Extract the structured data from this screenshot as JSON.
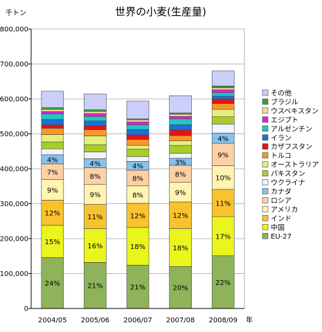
{
  "chart_data": {
    "type": "bar",
    "stacked": true,
    "title": "世界の小麦(生産量)",
    "ylabel": "千トン",
    "xlabel": "年",
    "categories": [
      "2004/05",
      "2005/06",
      "2006/07",
      "2007/08",
      "2008/09"
    ],
    "ylim": [
      0,
      800000
    ],
    "yticks": [
      "0",
      "100,000",
      "200,000",
      "300,000",
      "400,000",
      "500,000",
      "600,000",
      "700,000",
      "800,000"
    ],
    "grid": true,
    "legend_position": "right",
    "series": [
      {
        "name": "EU-27",
        "color": "#8fb35a",
        "values": [
          146000,
          132000,
          124000,
          120000,
          151000
        ],
        "labels": [
          "24%",
          "21%",
          "21%",
          "20%",
          "22%"
        ]
      },
      {
        "name": "中国",
        "color": "#eaf51e",
        "values": [
          92000,
          97000,
          108000,
          109000,
          112000
        ],
        "labels": [
          "15%",
          "16%",
          "18%",
          "18%",
          "17%"
        ]
      },
      {
        "name": "インド",
        "color": "#f8c32e",
        "values": [
          72000,
          69000,
          69000,
          76000,
          78000
        ],
        "labels": [
          "12%",
          "11%",
          "12%",
          "12%",
          "11%"
        ]
      },
      {
        "name": "アメリカ",
        "color": "#fff4b0",
        "values": [
          59000,
          57000,
          50000,
          56000,
          68000
        ],
        "labels": [
          "9%",
          "9%",
          "8%",
          "9%",
          "10%"
        ]
      },
      {
        "name": "ロシア",
        "color": "#fcd1a6",
        "values": [
          45000,
          48000,
          45000,
          49000,
          64000
        ],
        "labels": [
          "7%",
          "8%",
          "8%",
          "8%",
          "9%"
        ]
      },
      {
        "name": "カナダ",
        "color": "#86c2ec",
        "values": [
          26000,
          26000,
          25000,
          20000,
          29000
        ],
        "labels": [
          "4%",
          "4%",
          "4%",
          "3%",
          "4%"
        ]
      },
      {
        "name": "ウクライナ",
        "color": "#f0f4ff",
        "values": [
          17000,
          19000,
          14000,
          14000,
          26000
        ],
        "labels": [
          "",
          "",
          "",
          "",
          ""
        ]
      },
      {
        "name": "パキスタン",
        "color": "#a9cc2a",
        "values": [
          20000,
          21000,
          21000,
          23000,
          21000
        ],
        "labels": [
          "",
          "",
          "",
          "",
          ""
        ]
      },
      {
        "name": "オーストラリア",
        "color": "#e7ef7c",
        "values": [
          21000,
          25000,
          11000,
          13000,
          21000
        ],
        "labels": [
          "",
          "",
          "",
          "",
          ""
        ]
      },
      {
        "name": "トルコ",
        "color": "#f7972a",
        "values": [
          18000,
          18000,
          17000,
          15000,
          17000
        ],
        "labels": [
          "",
          "",
          "",
          "",
          ""
        ]
      },
      {
        "name": "カザフスタン",
        "color": "#e21414",
        "values": [
          10000,
          11000,
          13000,
          16000,
          13000
        ],
        "labels": [
          "",
          "",
          "",
          "",
          ""
        ]
      },
      {
        "name": "イラン",
        "color": "#1e6fd8",
        "values": [
          15000,
          14000,
          15000,
          15000,
          8000
        ],
        "labels": [
          "",
          "",
          "",
          "",
          ""
        ]
      },
      {
        "name": "アルゼンチン",
        "color": "#1ec8c8",
        "values": [
          16000,
          13000,
          14000,
          17000,
          10000
        ],
        "labels": [
          "",
          "",
          "",
          "",
          ""
        ]
      },
      {
        "name": "エジプト",
        "color": "#e81ed8",
        "values": [
          7000,
          8000,
          8000,
          7000,
          8000
        ],
        "labels": [
          "",
          "",
          "",
          "",
          ""
        ]
      },
      {
        "name": "ウスベキスタン",
        "color": "#fad89a",
        "values": [
          6000,
          6000,
          6000,
          6000,
          6000
        ],
        "labels": [
          "",
          "",
          "",
          "",
          ""
        ]
      },
      {
        "name": "ブラジル",
        "color": "#3c9a3c",
        "values": [
          5000,
          5000,
          3000,
          4000,
          5000
        ],
        "labels": [
          "",
          "",
          "",
          "",
          ""
        ]
      },
      {
        "name": "その他",
        "color": "#cccffa",
        "values": [
          47000,
          45000,
          51000,
          49000,
          43000
        ],
        "labels": [
          "",
          "",
          "",
          "",
          ""
        ]
      }
    ]
  }
}
